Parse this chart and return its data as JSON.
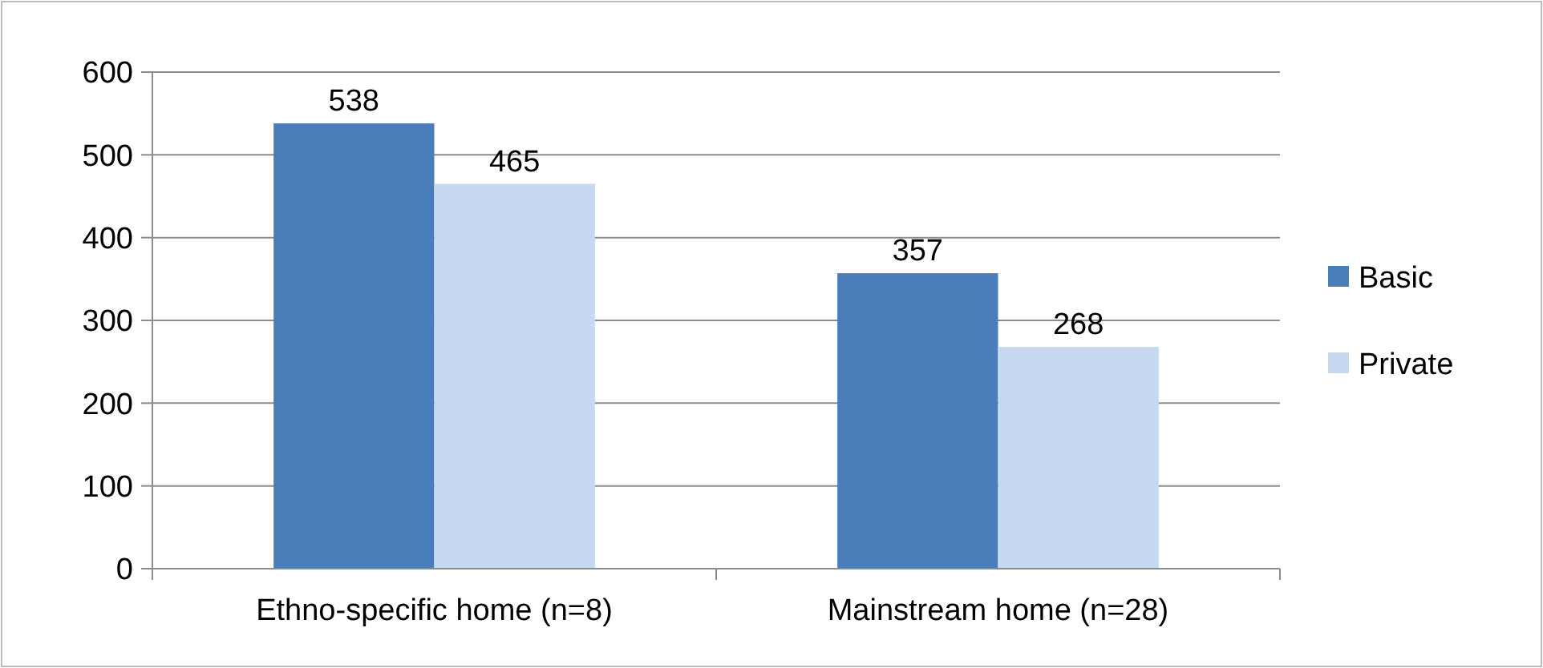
{
  "chart_data": {
    "type": "bar",
    "categories": [
      "Ethno-specific home (n=8)",
      "Mainstream home (n=28)"
    ],
    "series": [
      {
        "name": "Basic",
        "color": "#4a7ebb",
        "values": [
          538,
          357
        ]
      },
      {
        "name": "Private",
        "color": "#c6d9f1",
        "values": [
          465,
          268
        ]
      }
    ],
    "ylim": [
      0,
      600
    ],
    "yticks": [
      0,
      100,
      200,
      300,
      400,
      500,
      600
    ],
    "grid": "y",
    "legend": "right",
    "data_labels": true
  }
}
